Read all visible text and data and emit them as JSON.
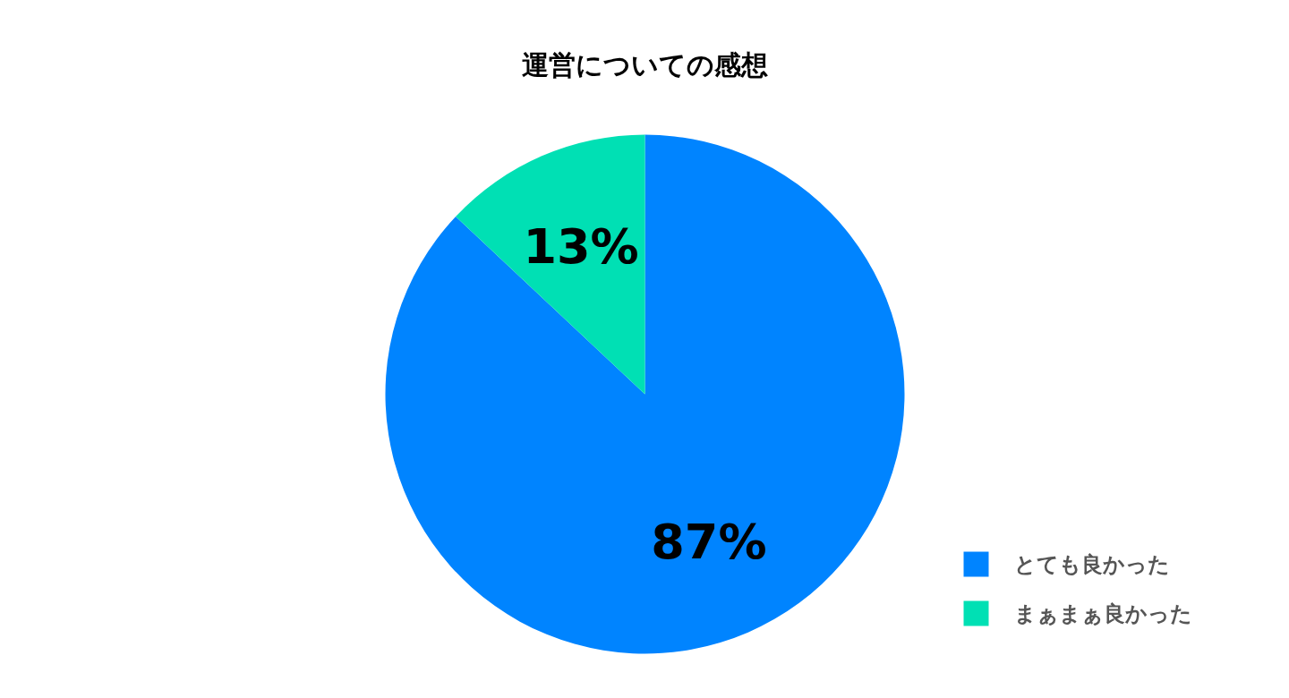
{
  "chart_data": {
    "type": "pie",
    "title": "運営についての感想",
    "categories": [
      "とても良かった",
      "まぁまぁ良かった"
    ],
    "values": [
      87,
      13
    ],
    "colors": [
      "#0084ff",
      "#00e0b4"
    ],
    "value_labels": [
      "87%",
      "13%"
    ],
    "legend": "bottom right"
  }
}
